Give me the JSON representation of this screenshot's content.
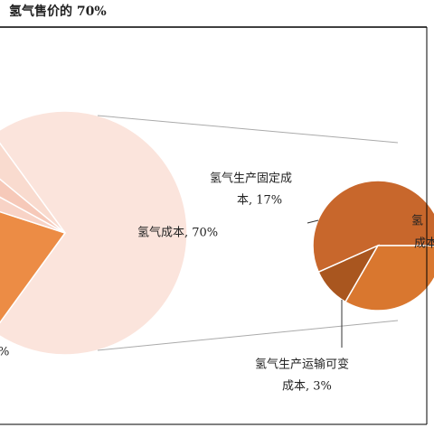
{
  "chart_data": {
    "type": "pie-of-pie",
    "title": "氢气售价的 70%",
    "main_pie": {
      "slices": [
        {
          "label": [
            "氢气成本, 70%"
          ],
          "value": 70,
          "color": "#fbe4dc"
        },
        {
          "label": [
            "%"
          ],
          "value": 20,
          "color": "#ec8c45"
        },
        {
          "label": null,
          "value": 3,
          "color": "#f8d3c6"
        },
        {
          "label": null,
          "value": 3,
          "color": "#f6c9b9"
        },
        {
          "label": null,
          "value": 4,
          "color": "#f9dbcf"
        }
      ]
    },
    "sub_pie": {
      "slices": [
        {
          "label": [
            "氢气生产固定成",
            "本, 17%"
          ],
          "value": 17,
          "color": "#c8672c"
        },
        {
          "label": [
            "氢气生产运输可变",
            "成本, 3%"
          ],
          "value": 3,
          "color": "#a9561f"
        },
        {
          "label": [
            "氢",
            "成本"
          ],
          "value": 10,
          "color": "#d9772f"
        }
      ]
    }
  }
}
